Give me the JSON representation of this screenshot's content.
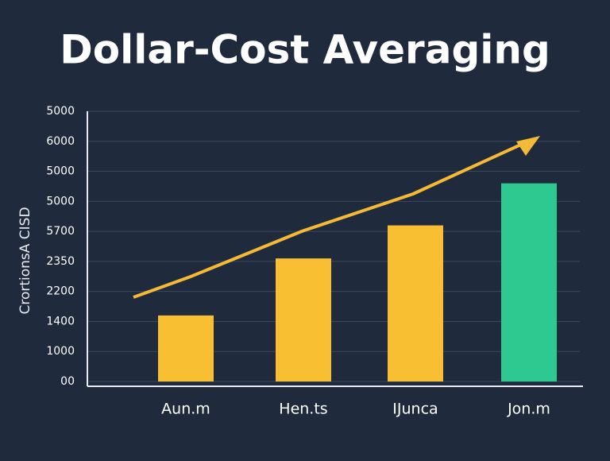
{
  "chart_data": {
    "type": "bar",
    "title": "Dollar-Cost Averaging",
    "y_label": "CrortionsA CISD",
    "categories": [
      "Aun.m",
      "Hen.ts",
      "IJunca",
      "Jon.m"
    ],
    "values": [
      2.2,
      4.1,
      5.2,
      6.6
    ],
    "colors": [
      "#f9bf32",
      "#f9bf32",
      "#f9bf32",
      "#2ec990"
    ],
    "ylim": [
      0,
      9
    ],
    "yticks": [
      {
        "value": 0,
        "label": "00"
      },
      {
        "value": 1,
        "label": "1000"
      },
      {
        "value": 2,
        "label": "1400"
      },
      {
        "value": 3,
        "label": "2200"
      },
      {
        "value": 4,
        "label": "2350"
      },
      {
        "value": 5,
        "label": "5700"
      },
      {
        "value": 6,
        "label": "5000"
      },
      {
        "value": 7,
        "label": "5000"
      },
      {
        "value": 8,
        "label": "6000"
      },
      {
        "value": 9,
        "label": "5000"
      }
    ],
    "grid": true
  }
}
